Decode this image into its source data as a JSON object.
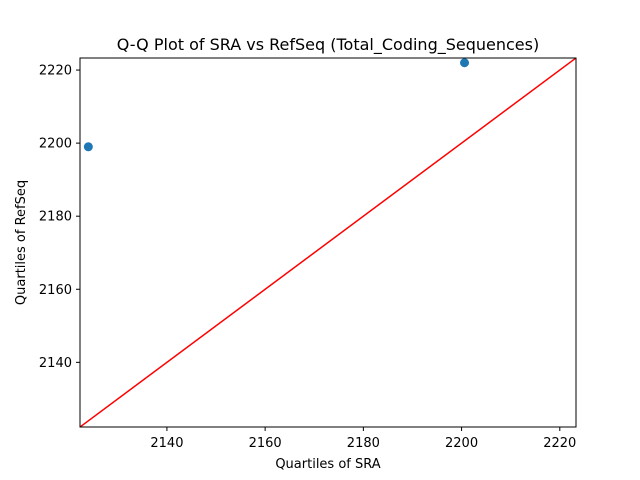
{
  "chart_data": {
    "type": "scatter",
    "title": "Q-Q Plot of SRA vs RefSeq (Total_Coding_Sequences)",
    "xlabel": "Quartiles of SRA",
    "ylabel": "Quartiles of RefSeq",
    "xlim": [
      2122.3,
      2223.3
    ],
    "ylim": [
      2122.3,
      2223.3
    ],
    "xticks": [
      2140,
      2160,
      2180,
      2200,
      2220
    ],
    "yticks": [
      2140,
      2160,
      2180,
      2200,
      2220
    ],
    "grid": false,
    "legend": false,
    "points": [
      {
        "x": 2124,
        "y": 2199
      },
      {
        "x": 2200.6,
        "y": 2222
      }
    ],
    "reference_line": {
      "from": [
        2122.3,
        2122.3
      ],
      "to": [
        2223.3,
        2223.3
      ]
    },
    "colors": {
      "points": "#1f77b4",
      "reference_line": "#ff0000",
      "axes": "#000000"
    }
  }
}
